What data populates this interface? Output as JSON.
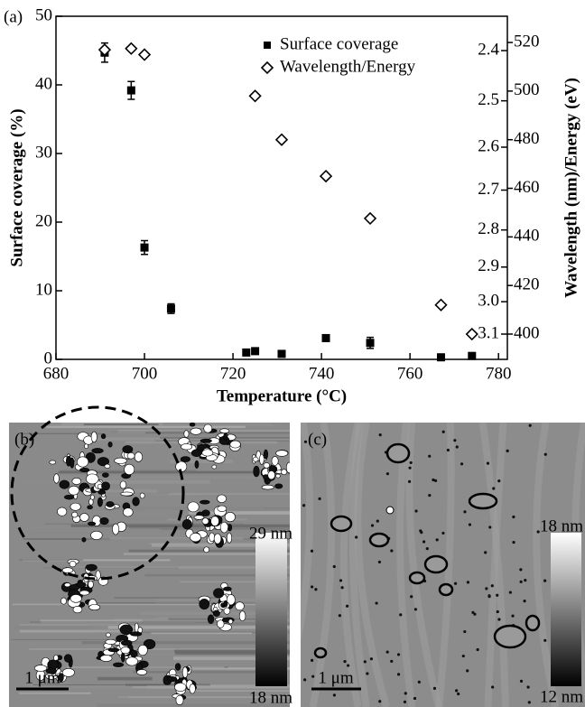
{
  "chart_data": {
    "type": "scatter",
    "panel_label": "(a)",
    "xlabel": "Temperature (°C)",
    "ylabel": "Surface coverage (%)",
    "y2label": "Wavelength (nm)/Energy (eV)",
    "xlim": [
      680,
      782
    ],
    "xticks": [
      680,
      700,
      720,
      740,
      760,
      780
    ],
    "ylim": [
      0,
      50
    ],
    "yticks": [
      0,
      10,
      20,
      30,
      40,
      50
    ],
    "y2lim": [
      389.6,
      530.8
    ],
    "y2ticks": [
      400,
      420,
      440,
      460,
      480,
      500,
      520
    ],
    "energy_ticks": [
      {
        "value": 2.4,
        "label": "2.4"
      },
      {
        "value": 2.5,
        "label": "2.5"
      },
      {
        "value": 2.6,
        "label": "2.6"
      },
      {
        "value": 2.7,
        "label": "2.7"
      },
      {
        "value": 2.8,
        "label": "2.8"
      },
      {
        "value": 2.9,
        "label": "2.9"
      },
      {
        "value": 3.0,
        "label": "3.0"
      },
      {
        "value": 3.1,
        "label": "3.1"
      }
    ],
    "legend": "upper right",
    "series": [
      {
        "name": "Surface coverage",
        "marker": "square",
        "color": "#000000",
        "x": [
          691,
          697,
          700,
          706,
          723,
          725,
          731,
          741,
          751,
          767,
          774
        ],
        "values": [
          44.7,
          39.2,
          16.3,
          7.4,
          1.0,
          1.2,
          0.8,
          3.1,
          2.4,
          0.3,
          0.5
        ],
        "errors": [
          1.4,
          1.3,
          1.0,
          0.7,
          0.3,
          0.3,
          0.3,
          0.3,
          0.8,
          0.3,
          0.3
        ]
      },
      {
        "name": "Wavelength/Energy",
        "marker": "diamond",
        "color": "#000000",
        "axis": "y2",
        "x": [
          691,
          697,
          700,
          725,
          731,
          741,
          751,
          767,
          774
        ],
        "values": [
          517,
          517.5,
          515,
          498,
          480,
          465,
          447.6,
          412,
          400
        ]
      }
    ]
  },
  "panels": [
    {
      "label": "(b)",
      "scale_max": "29 nm",
      "scale_min": "18 nm",
      "scale_bar": "1 μm"
    },
    {
      "label": "(c)",
      "scale_max": "18 nm",
      "scale_min": "12 nm",
      "scale_bar": "1 μm"
    }
  ]
}
